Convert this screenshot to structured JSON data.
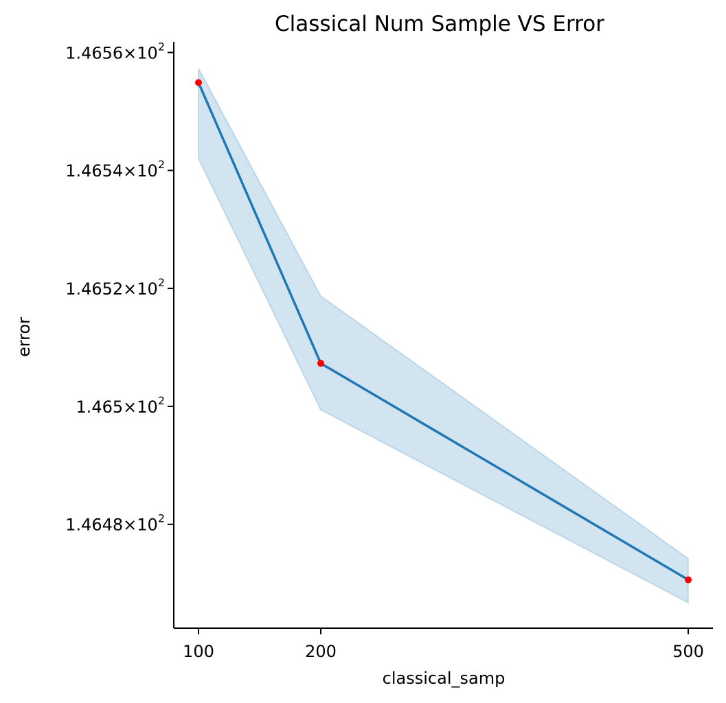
{
  "chart_data": {
    "type": "line",
    "title": "Classical Num Sample VS Error",
    "xlabel": "classical_samp",
    "ylabel": "error",
    "x": [
      100,
      200,
      500
    ],
    "x_tick_labels": [
      "100",
      "200",
      "500"
    ],
    "y_scale": "log",
    "y_ticks": [
      {
        "value": 146.48,
        "mantissa": "1.4648",
        "base": "10",
        "exponent": "2"
      },
      {
        "value": 146.5,
        "mantissa": "1.465",
        "base": "10",
        "exponent": "2"
      },
      {
        "value": 146.52,
        "mantissa": "1.4652",
        "base": "10",
        "exponent": "2"
      },
      {
        "value": 146.54,
        "mantissa": "1.4654",
        "base": "10",
        "exponent": "2"
      },
      {
        "value": 146.56,
        "mantissa": "1.4656",
        "base": "10",
        "exponent": "2"
      }
    ],
    "ylim": [
      146.4624,
      146.5618
    ],
    "series": [
      {
        "values": [
          146.5549,
          146.5073,
          146.4706
        ],
        "ci_upper": [
          146.5573,
          146.5187,
          146.4742
        ],
        "ci_lower": [
          146.542,
          146.4994,
          146.4667
        ],
        "line_color": "#1f77b4",
        "band_color": "#1f77b4",
        "marker_color": "#ff0000"
      }
    ],
    "grid": false
  }
}
